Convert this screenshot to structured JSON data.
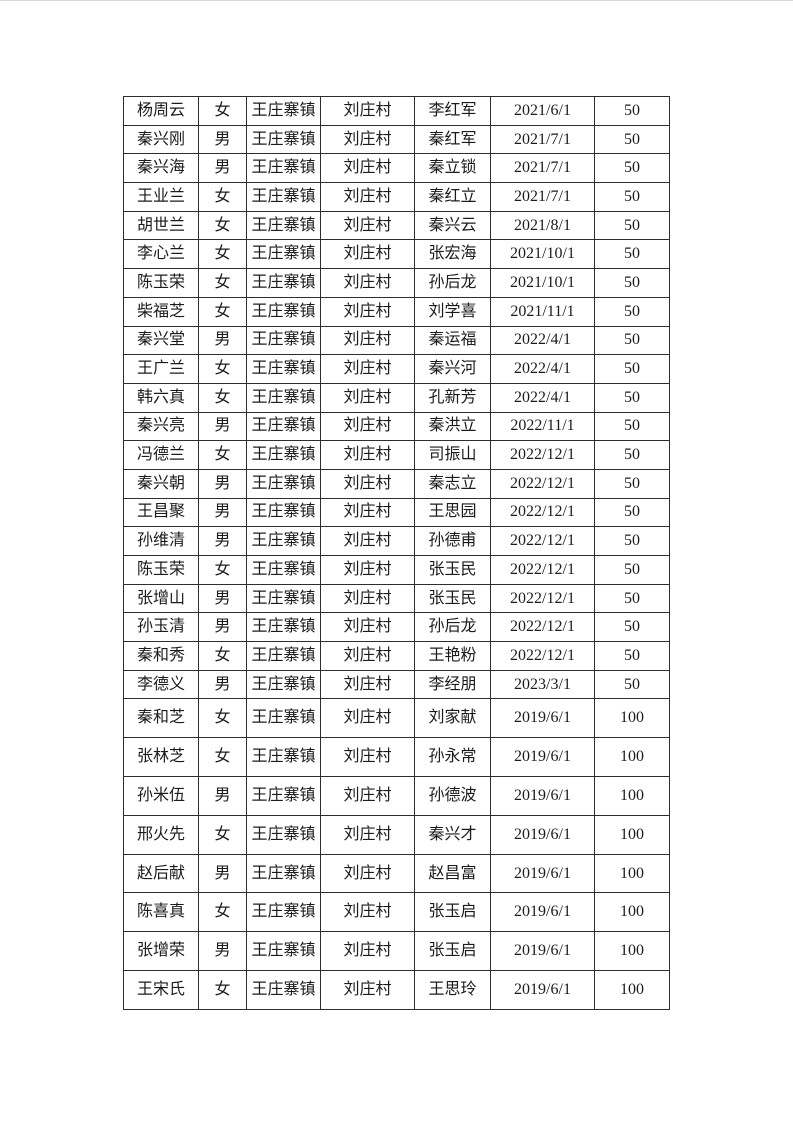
{
  "colors": {
    "page_background": "#ffffff",
    "table_border": "#2e2e2e",
    "text": "#1b1b1b"
  },
  "table": {
    "rows": [
      [
        "杨周云",
        "女",
        "王庄寨镇",
        "刘庄村",
        "李红军",
        "2021/6/1",
        "50"
      ],
      [
        "秦兴刚",
        "男",
        "王庄寨镇",
        "刘庄村",
        "秦红军",
        "2021/7/1",
        "50"
      ],
      [
        "秦兴海",
        "男",
        "王庄寨镇",
        "刘庄村",
        "秦立锁",
        "2021/7/1",
        "50"
      ],
      [
        "王业兰",
        "女",
        "王庄寨镇",
        "刘庄村",
        "秦红立",
        "2021/7/1",
        "50"
      ],
      [
        "胡世兰",
        "女",
        "王庄寨镇",
        "刘庄村",
        "秦兴云",
        "2021/8/1",
        "50"
      ],
      [
        "李心兰",
        "女",
        "王庄寨镇",
        "刘庄村",
        "张宏海",
        "2021/10/1",
        "50"
      ],
      [
        "陈玉荣",
        "女",
        "王庄寨镇",
        "刘庄村",
        "孙后龙",
        "2021/10/1",
        "50"
      ],
      [
        "柴福芝",
        "女",
        "王庄寨镇",
        "刘庄村",
        "刘学喜",
        "2021/11/1",
        "50"
      ],
      [
        "秦兴堂",
        "男",
        "王庄寨镇",
        "刘庄村",
        "秦运福",
        "2022/4/1",
        "50"
      ],
      [
        "王广兰",
        "女",
        "王庄寨镇",
        "刘庄村",
        "秦兴河",
        "2022/4/1",
        "50"
      ],
      [
        "韩六真",
        "女",
        "王庄寨镇",
        "刘庄村",
        "孔新芳",
        "2022/4/1",
        "50"
      ],
      [
        "秦兴亮",
        "男",
        "王庄寨镇",
        "刘庄村",
        "秦洪立",
        "2022/11/1",
        "50"
      ],
      [
        "冯德兰",
        "女",
        "王庄寨镇",
        "刘庄村",
        "司振山",
        "2022/12/1",
        "50"
      ],
      [
        "秦兴朝",
        "男",
        "王庄寨镇",
        "刘庄村",
        "秦志立",
        "2022/12/1",
        "50"
      ],
      [
        "王昌聚",
        "男",
        "王庄寨镇",
        "刘庄村",
        "王思园",
        "2022/12/1",
        "50"
      ],
      [
        "孙维清",
        "男",
        "王庄寨镇",
        "刘庄村",
        "孙德甫",
        "2022/12/1",
        "50"
      ],
      [
        "陈玉荣",
        "女",
        "王庄寨镇",
        "刘庄村",
        "张玉民",
        "2022/12/1",
        "50"
      ],
      [
        "张增山",
        "男",
        "王庄寨镇",
        "刘庄村",
        "张玉民",
        "2022/12/1",
        "50"
      ],
      [
        "孙玉清",
        "男",
        "王庄寨镇",
        "刘庄村",
        "孙后龙",
        "2022/12/1",
        "50"
      ],
      [
        "秦和秀",
        "女",
        "王庄寨镇",
        "刘庄村",
        "王艳粉",
        "2022/12/1",
        "50"
      ],
      [
        "李德义",
        "男",
        "王庄寨镇",
        "刘庄村",
        "李经朋",
        "2023/3/1",
        "50"
      ],
      [
        "秦和芝",
        "女",
        "王庄寨镇",
        "刘庄村",
        "刘家献",
        "2019/6/1",
        "100"
      ],
      [
        "张林芝",
        "女",
        "王庄寨镇",
        "刘庄村",
        "孙永常",
        "2019/6/1",
        "100"
      ],
      [
        "孙米伍",
        "男",
        "王庄寨镇",
        "刘庄村",
        "孙德波",
        "2019/6/1",
        "100"
      ],
      [
        "邢火先",
        "女",
        "王庄寨镇",
        "刘庄村",
        "秦兴才",
        "2019/6/1",
        "100"
      ],
      [
        "赵后献",
        "男",
        "王庄寨镇",
        "刘庄村",
        "赵昌富",
        "2019/6/1",
        "100"
      ],
      [
        "陈喜真",
        "女",
        "王庄寨镇",
        "刘庄村",
        "张玉启",
        "2019/6/1",
        "100"
      ],
      [
        "张增荣",
        "男",
        "王庄寨镇",
        "刘庄村",
        "张玉启",
        "2019/6/1",
        "100"
      ],
      [
        "王宋氏",
        "女",
        "王庄寨镇",
        "刘庄村",
        "王思玲",
        "2019/6/1",
        "100"
      ]
    ]
  }
}
